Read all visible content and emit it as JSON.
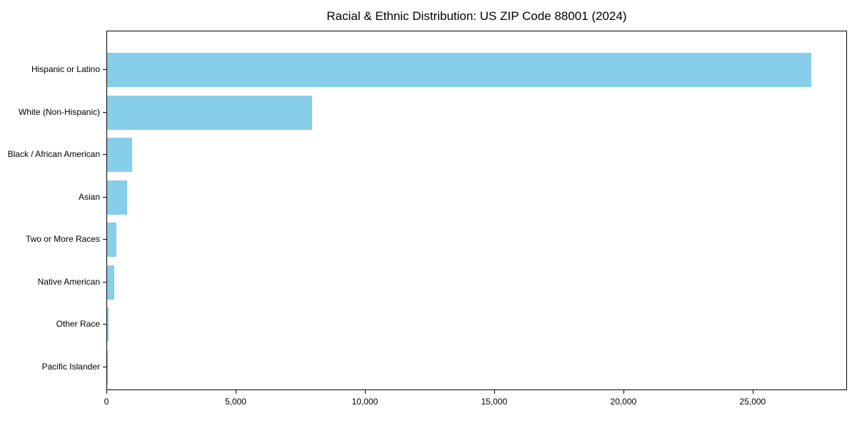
{
  "figure": {
    "background_color": "#ffffff",
    "bar_color": "#87ceeb",
    "axis_color": "#000000",
    "text_color": "#000000"
  },
  "chart_data": {
    "type": "bar",
    "orientation": "horizontal",
    "title": "Racial & Ethnic Distribution: US ZIP Code 88001 (2024)",
    "xlabel": "",
    "ylabel": "",
    "grid": false,
    "legend": null,
    "categories": [
      "Hispanic or Latino",
      "White (Non-Hispanic)",
      "Black / African American",
      "Asian",
      "Two or More Races",
      "Native American",
      "Other Race",
      "Pacific Islander"
    ],
    "values": [
      27250,
      7930,
      970,
      770,
      360,
      280,
      45,
      10
    ],
    "xlim": [
      0,
      28650
    ],
    "x_ticks": [
      {
        "value": 0,
        "label": "0"
      },
      {
        "value": 5000,
        "label": "5,000"
      },
      {
        "value": 10000,
        "label": "10,000"
      },
      {
        "value": 15000,
        "label": "15,000"
      },
      {
        "value": 20000,
        "label": "20,000"
      },
      {
        "value": 25000,
        "label": "25,000"
      }
    ]
  }
}
